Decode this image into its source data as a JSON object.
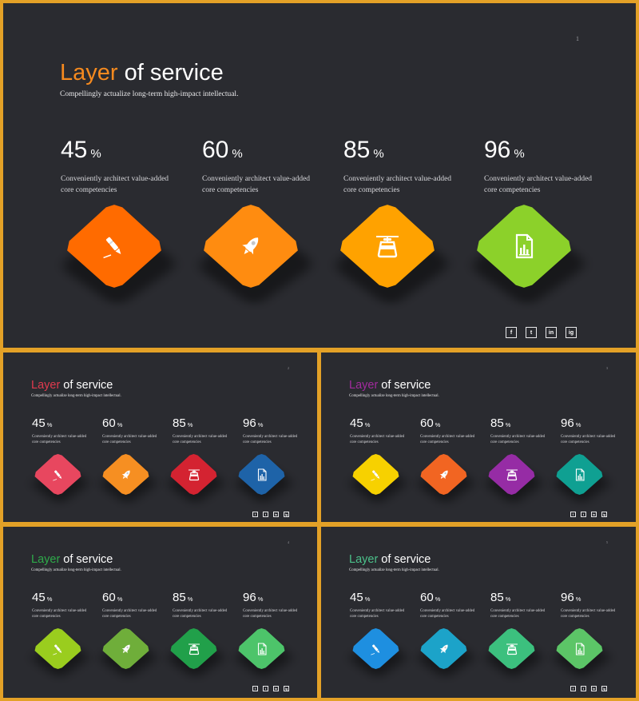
{
  "slides": [
    {
      "id": "main",
      "page_number": "1",
      "title_accent": "Layer",
      "title_rest": " of service",
      "accent_color": "#F58A1F",
      "subtitle": "Compellingly actualize long-term high-impact intellectual.",
      "stats": [
        {
          "value": "45",
          "unit": "%",
          "desc": "Conveniently architect value-added core competencies",
          "color": "#FF6B00",
          "icon": "pen-icon"
        },
        {
          "value": "60",
          "unit": "%",
          "desc": "Conveniently architect value-added core competencies",
          "color": "#FF8C10",
          "icon": "rocket-icon"
        },
        {
          "value": "85",
          "unit": "%",
          "desc": "Conveniently architect value-added core competencies",
          "color": "#FFA200",
          "icon": "cable-car-icon"
        },
        {
          "value": "96",
          "unit": "%",
          "desc": "Conveniently architect value-added core competencies",
          "color": "#8CD12A",
          "icon": "chart-document-icon"
        }
      ]
    },
    {
      "id": "s1",
      "page_number": "2",
      "title_accent": "Layer",
      "title_rest": " of service",
      "accent_color": "#E03A4E",
      "subtitle": "Compellingly actualize long-term high-impact intellectual.",
      "stats": [
        {
          "value": "45",
          "unit": "%",
          "desc": "Conveniently architect value-added core competencies",
          "color": "#E8475F",
          "icon": "pen-icon"
        },
        {
          "value": "60",
          "unit": "%",
          "desc": "Conveniently architect value-added core competencies",
          "color": "#F68F22",
          "icon": "rocket-icon"
        },
        {
          "value": "85",
          "unit": "%",
          "desc": "Conveniently architect value-added core competencies",
          "color": "#D42331",
          "icon": "cable-car-icon"
        },
        {
          "value": "96",
          "unit": "%",
          "desc": "Conveniently architect value-added core competencies",
          "color": "#1E63A8",
          "icon": "chart-document-icon"
        }
      ]
    },
    {
      "id": "s2",
      "page_number": "3",
      "title_accent": "Layer",
      "title_rest": " of service",
      "accent_color": "#A22B9E",
      "subtitle": "Compellingly actualize long-term high-impact intellectual.",
      "stats": [
        {
          "value": "45",
          "unit": "%",
          "desc": "Conveniently architect value-added core competencies",
          "color": "#F7D100",
          "icon": "pen-icon"
        },
        {
          "value": "60",
          "unit": "%",
          "desc": "Conveniently architect value-added core competencies",
          "color": "#F26522",
          "icon": "rocket-icon"
        },
        {
          "value": "85",
          "unit": "%",
          "desc": "Conveniently architect value-added core competencies",
          "color": "#962CA5",
          "icon": "cable-car-icon"
        },
        {
          "value": "96",
          "unit": "%",
          "desc": "Conveniently architect value-added core competencies",
          "color": "#0FA092",
          "icon": "chart-document-icon"
        }
      ]
    },
    {
      "id": "s3",
      "page_number": "4",
      "title_accent": "Layer",
      "title_rest": " of service",
      "accent_color": "#2EAA4A",
      "subtitle": "Compellingly actualize long-term high-impact intellectual.",
      "stats": [
        {
          "value": "45",
          "unit": "%",
          "desc": "Conveniently architect value-added core competencies",
          "color": "#9ACD1E",
          "icon": "pen-icon"
        },
        {
          "value": "60",
          "unit": "%",
          "desc": "Conveniently architect value-added core competencies",
          "color": "#6FAE3A",
          "icon": "rocket-icon"
        },
        {
          "value": "85",
          "unit": "%",
          "desc": "Conveniently architect value-added core competencies",
          "color": "#21A04A",
          "icon": "cable-car-icon"
        },
        {
          "value": "96",
          "unit": "%",
          "desc": "Conveniently architect value-added core competencies",
          "color": "#4DC46A",
          "icon": "chart-document-icon"
        }
      ]
    },
    {
      "id": "s4",
      "page_number": "5",
      "title_accent": "Layer",
      "title_rest": " of service",
      "accent_color": "#4BC08A",
      "subtitle": "Compellingly actualize long-term high-impact intellectual.",
      "stats": [
        {
          "value": "45",
          "unit": "%",
          "desc": "Conveniently architect value-added core competencies",
          "color": "#1E8FE0",
          "icon": "pen-icon"
        },
        {
          "value": "60",
          "unit": "%",
          "desc": "Conveniently architect value-added core competencies",
          "color": "#1CA3C9",
          "icon": "rocket-icon"
        },
        {
          "value": "85",
          "unit": "%",
          "desc": "Conveniently architect value-added core competencies",
          "color": "#3CC07E",
          "icon": "cable-car-icon"
        },
        {
          "value": "96",
          "unit": "%",
          "desc": "Conveniently architect value-added core competencies",
          "color": "#5CC567",
          "icon": "chart-document-icon"
        }
      ]
    }
  ],
  "socials": [
    {
      "label": "f",
      "icon": "facebook-icon"
    },
    {
      "label": "t",
      "icon": "twitter-icon"
    },
    {
      "label": "in",
      "icon": "linkedin-icon"
    },
    {
      "label": "ig",
      "icon": "instagram-icon"
    }
  ],
  "colors": {
    "background": "#2A2B30",
    "frame": "#E3A127"
  }
}
